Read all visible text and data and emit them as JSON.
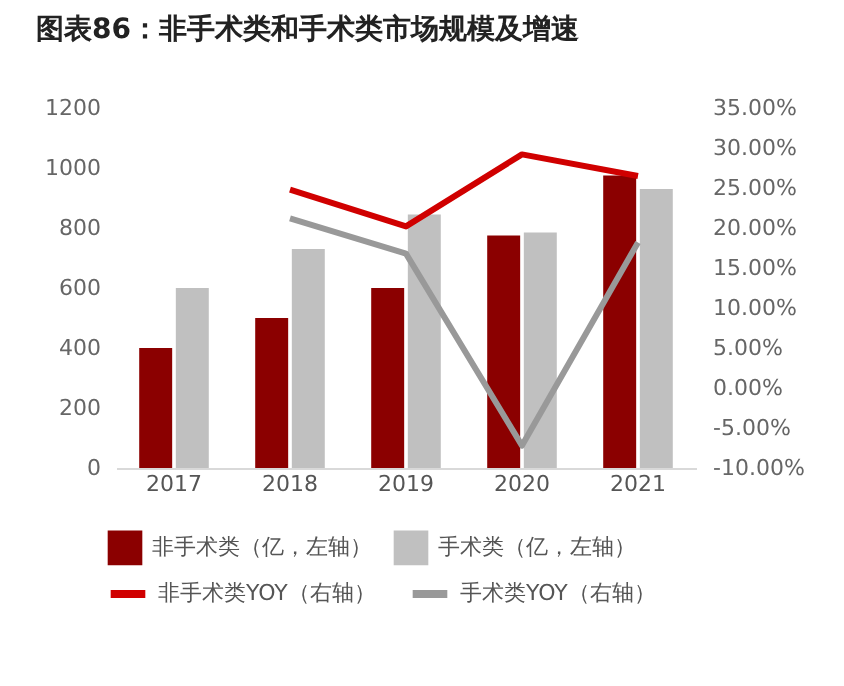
{
  "chart_data": {
    "type": "bar",
    "title": "图表86：非手术类和手术类市场规模及增速",
    "categories": [
      "2017",
      "2018",
      "2019",
      "2020",
      "2021"
    ],
    "series": [
      {
        "name": "非手术类（亿，左轴）",
        "color": "#8b0000",
        "values": [
          400,
          500,
          600,
          775,
          975
        ]
      },
      {
        "name": "手术类（亿，左轴）",
        "color": "#c0c0c0",
        "values": [
          600,
          730,
          845,
          785,
          930
        ]
      },
      {
        "name": "非手术类YOY（右轴）",
        "type": "line",
        "axis": "y2",
        "color": "#d00000",
        "values": [
          null,
          24.8,
          20.2,
          29.2,
          26.5
        ]
      },
      {
        "name": "手术类YOY（右轴）",
        "type": "line",
        "axis": "y2",
        "color": "#999999",
        "values": [
          null,
          21.2,
          16.8,
          -7.2,
          18.2
        ]
      }
    ],
    "ylim": [
      0,
      1200
    ],
    "yticks": [
      0,
      200,
      400,
      600,
      800,
      1000,
      1200
    ],
    "y2lim": [
      -10,
      35
    ],
    "y2ticks": [
      {
        "value": 35,
        "label": "35.00%"
      },
      {
        "value": 30,
        "label": "30.00%"
      },
      {
        "value": 25,
        "label": "25.00%"
      },
      {
        "value": 20,
        "label": "20.00%"
      },
      {
        "value": 15,
        "label": "15.00%"
      },
      {
        "value": 10,
        "label": "10.00%"
      },
      {
        "value": 5,
        "label": "5.00%"
      },
      {
        "value": 0,
        "label": "0.00%"
      },
      {
        "value": -5,
        "label": "-5.00%"
      },
      {
        "value": -10,
        "label": "-10.00%"
      }
    ],
    "legend": "bottom"
  }
}
